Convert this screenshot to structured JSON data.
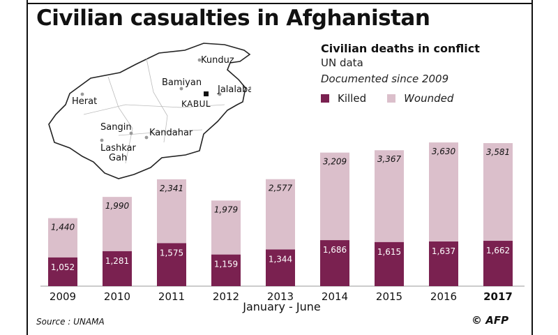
{
  "title": "Civilian casualties in Afghanistan",
  "legend": {
    "heading": "Civilian deaths in conflict",
    "subheading": "UN data",
    "note": "Documented since 2009",
    "killed_label": "Killed",
    "wounded_label": "Wounded"
  },
  "colors": {
    "killed": "#7a2150",
    "wounded": "#dbbfcb"
  },
  "map": {
    "cities": [
      "Kunduz",
      "Bamiyan",
      "Jalalabad",
      "Herat",
      "KABUL",
      "Sangin",
      "Kandahar",
      "Lashkar",
      "Gah"
    ]
  },
  "chart_data": {
    "type": "bar",
    "stacked": true,
    "categories": [
      "2009",
      "2010",
      "2011",
      "2012",
      "2013",
      "2014",
      "2015",
      "2016",
      "2017"
    ],
    "series": [
      {
        "name": "Killed",
        "values": [
          1052,
          1281,
          1575,
          1159,
          1344,
          1686,
          1615,
          1637,
          1662
        ]
      },
      {
        "name": "Wounded",
        "values": [
          1440,
          1990,
          2341,
          1979,
          2577,
          3209,
          3367,
          3630,
          3581
        ]
      }
    ],
    "killed_labels": [
      "1,052",
      "1,281",
      "1,575",
      "1,159",
      "1,344",
      "1,686",
      "1,615",
      "1,637",
      "1,662"
    ],
    "wounded_labels": [
      "1,440",
      "1,990",
      "2,341",
      "1,979",
      "2,577",
      "3,209",
      "3,367",
      "3,630",
      "3,581"
    ],
    "xlabel": "January - June",
    "highlight_category": "2017",
    "ylim": [
      0,
      5500
    ],
    "grid": false,
    "legend_position": "top-right"
  },
  "footer": {
    "source": "Source : UNAMA",
    "credit": "© AFP"
  }
}
